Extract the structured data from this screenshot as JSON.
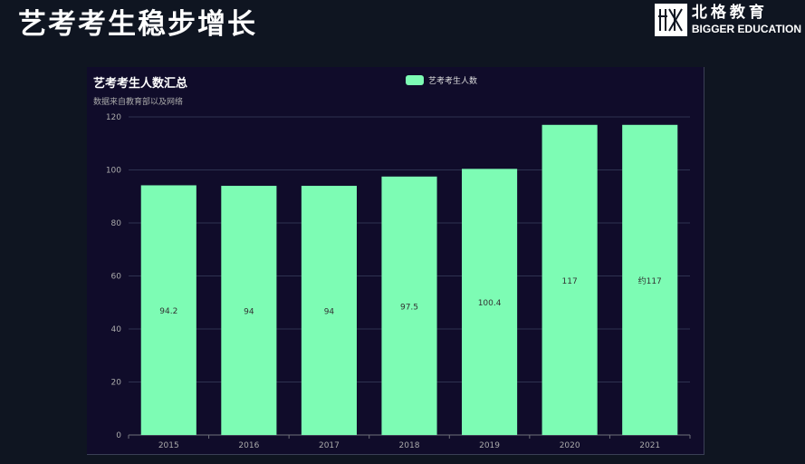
{
  "slide": {
    "title": "艺考考生稳步增长",
    "logo_cn": "北格教育",
    "logo_en": "BIGGER EDUCATION"
  },
  "colors": {
    "background": "#0f1521",
    "panel": "#100c2a",
    "bar": "#7dfcb4",
    "grid": "#2e3250",
    "axis_text": "#aaaaaa"
  },
  "chart_data": {
    "type": "bar",
    "title": "艺考考生人数汇总",
    "subtitle": "数据来自教育部以及网络",
    "categories": [
      "2015",
      "2016",
      "2017",
      "2018",
      "2019",
      "2020",
      "2021"
    ],
    "series": [
      {
        "name": "艺考考生人数",
        "values": [
          94.2,
          94,
          94,
          97.5,
          100.4,
          117,
          117
        ],
        "labels": [
          "94.2",
          "94",
          "94",
          "97.5",
          "100.4",
          "117",
          "约117"
        ]
      }
    ],
    "ylim": [
      0,
      120
    ],
    "yticks": [
      0,
      20,
      40,
      60,
      80,
      100,
      120
    ],
    "grid": true,
    "legend_position": "top-center"
  }
}
